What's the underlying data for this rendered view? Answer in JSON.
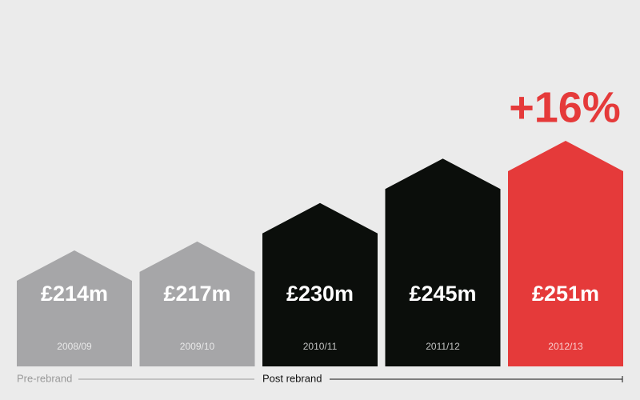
{
  "chart_data": {
    "type": "bar",
    "categories": [
      "2008/09",
      "2009/10",
      "2010/11",
      "2011/12",
      "2012/13"
    ],
    "values": [
      214,
      217,
      230,
      245,
      251
    ],
    "value_labels": [
      "£214m",
      "£217m",
      "£230m",
      "£245m",
      "£251m"
    ],
    "colors": [
      "#a6a6a8",
      "#a6a6a8",
      "#0b0e0b",
      "#0b0e0b",
      "#e53a3a"
    ],
    "annotation": "+16%",
    "group_labels": [
      "Pre-rebrand",
      "Post rebrand"
    ]
  }
}
